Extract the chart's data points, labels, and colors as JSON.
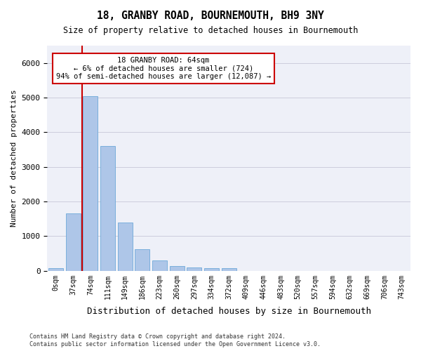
{
  "title": "18, GRANBY ROAD, BOURNEMOUTH, BH9 3NY",
  "subtitle": "Size of property relative to detached houses in Bournemouth",
  "xlabel": "Distribution of detached houses by size in Bournemouth",
  "ylabel": "Number of detached properties",
  "bar_values": [
    70,
    1650,
    5050,
    3600,
    1400,
    620,
    290,
    135,
    90,
    80,
    70,
    0,
    0,
    0,
    0,
    0,
    0,
    0,
    0,
    0,
    0
  ],
  "bar_labels": [
    "0sqm",
    "37sqm",
    "74sqm",
    "111sqm",
    "149sqm",
    "186sqm",
    "223sqm",
    "260sqm",
    "297sqm",
    "334sqm",
    "372sqm",
    "409sqm",
    "446sqm",
    "483sqm",
    "520sqm",
    "557sqm",
    "594sqm",
    "632sqm",
    "669sqm",
    "706sqm",
    "743sqm"
  ],
  "bar_color": "#aec6e8",
  "bar_edge_color": "#5a9fd4",
  "grid_color": "#ccccdd",
  "bg_color": "#eef0f8",
  "vline_x": 1.5,
  "vline_color": "#cc0000",
  "annotation_text": "18 GRANBY ROAD: 64sqm\n← 6% of detached houses are smaller (724)\n94% of semi-detached houses are larger (12,087) →",
  "annotation_box_color": "#ffffff",
  "annotation_box_edge": "#cc0000",
  "ylim": [
    0,
    6500
  ],
  "footer1": "Contains HM Land Registry data © Crown copyright and database right 2024.",
  "footer2": "Contains public sector information licensed under the Open Government Licence v3.0."
}
